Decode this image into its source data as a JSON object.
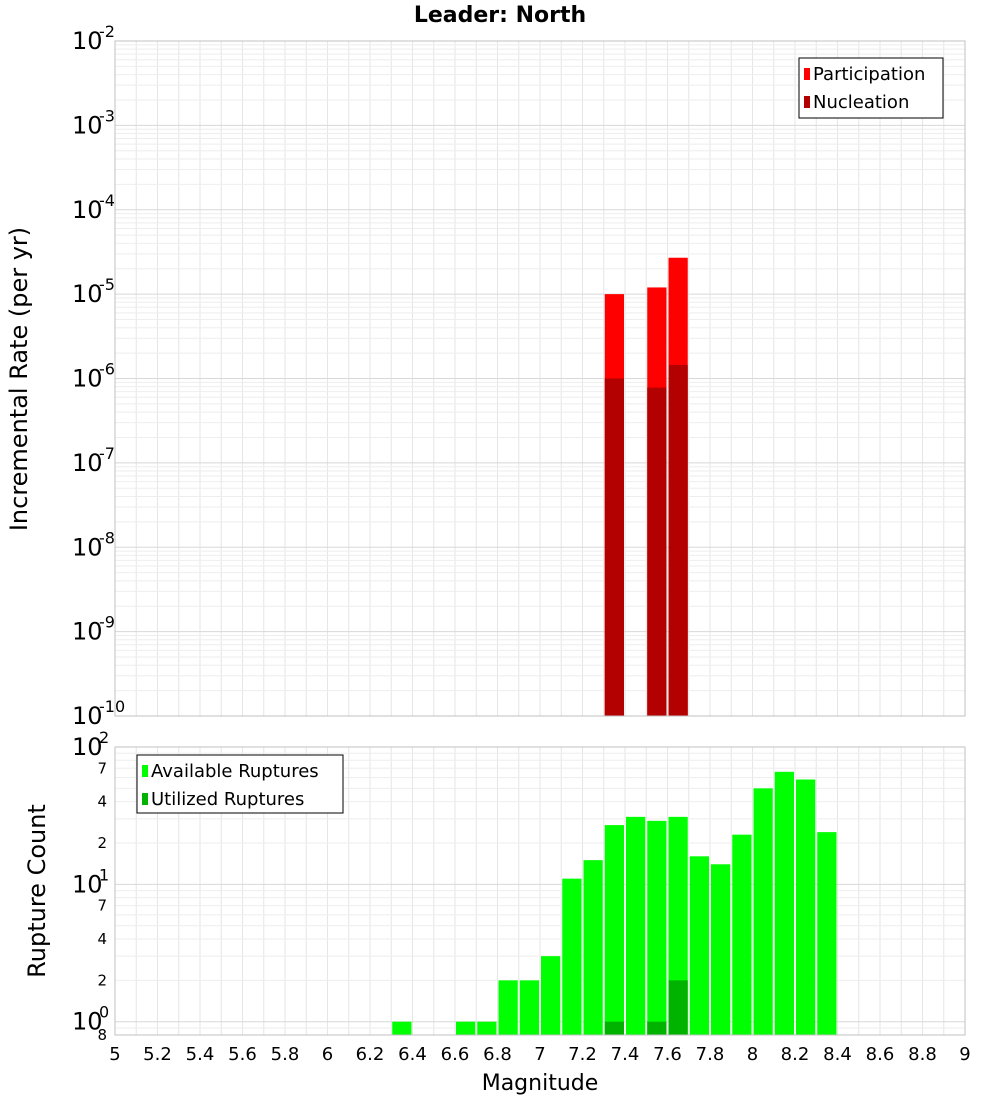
{
  "chart_data": [
    {
      "type": "bar",
      "title": "Leader: North",
      "xlabel": "",
      "ylabel": "Incremental Rate (per yr)",
      "yscale": "log",
      "xlim": [
        5,
        9
      ],
      "ylim": [
        1e-10,
        0.01
      ],
      "y_major_ticks": [
        {
          "base": "10",
          "exp": "-10",
          "value": 1e-10
        },
        {
          "base": "10",
          "exp": "-9",
          "value": 1e-09
        },
        {
          "base": "10",
          "exp": "-8",
          "value": 1e-08
        },
        {
          "base": "10",
          "exp": "-7",
          "value": 1e-07
        },
        {
          "base": "10",
          "exp": "-6",
          "value": 1e-06
        },
        {
          "base": "10",
          "exp": "-5",
          "value": 1e-05
        },
        {
          "base": "10",
          "exp": "-4",
          "value": 0.0001
        },
        {
          "base": "10",
          "exp": "-3",
          "value": 0.001
        },
        {
          "base": "10",
          "exp": "-2",
          "value": 0.01
        }
      ],
      "grid": true,
      "legend_position": "top-right",
      "series": [
        {
          "name": "Participation",
          "color": "#ff0000",
          "points": [
            {
              "x": 7.35,
              "y": 1e-05
            },
            {
              "x": 7.55,
              "y": 1.2e-05
            },
            {
              "x": 7.65,
              "y": 2.7e-05
            }
          ]
        },
        {
          "name": "Nucleation",
          "color": "#b30000",
          "points": [
            {
              "x": 7.35,
              "y": 1e-06
            },
            {
              "x": 7.55,
              "y": 7.8e-07
            },
            {
              "x": 7.65,
              "y": 1.45e-06
            }
          ]
        }
      ]
    },
    {
      "type": "bar",
      "title": "",
      "xlabel": "Magnitude",
      "ylabel": "Rupture Count",
      "yscale": "log",
      "xlim": [
        5,
        9
      ],
      "ylim": [
        0.8,
        100
      ],
      "x_ticks": [
        "5",
        "5.2",
        "5.4",
        "5.6",
        "5.8",
        "6",
        "6.2",
        "6.4",
        "6.6",
        "6.8",
        "7",
        "7.2",
        "7.4",
        "7.6",
        "7.8",
        "8",
        "8.2",
        "8.4",
        "8.6",
        "8.8",
        "9"
      ],
      "y_major_ticks": [
        {
          "base": "10",
          "exp": "0",
          "value": 1
        },
        {
          "base": "10",
          "exp": "1",
          "value": 10
        },
        {
          "base": "10",
          "exp": "2",
          "value": 100
        }
      ],
      "y_minor_ticks": [
        {
          "label": "8",
          "value": 0.8
        },
        {
          "label": "2",
          "value": 2
        },
        {
          "label": "4",
          "value": 4
        },
        {
          "label": "7",
          "value": 7
        },
        {
          "label": "2",
          "value": 20
        },
        {
          "label": "4",
          "value": 40
        },
        {
          "label": "7",
          "value": 70
        }
      ],
      "grid": true,
      "legend_position": "top-left",
      "series": [
        {
          "name": "Available Ruptures",
          "color": "#00ff00",
          "points": [
            {
              "x": 6.35,
              "y": 1
            },
            {
              "x": 6.65,
              "y": 1
            },
            {
              "x": 6.75,
              "y": 1
            },
            {
              "x": 6.85,
              "y": 2
            },
            {
              "x": 6.95,
              "y": 2
            },
            {
              "x": 7.05,
              "y": 3
            },
            {
              "x": 7.15,
              "y": 11
            },
            {
              "x": 7.25,
              "y": 15
            },
            {
              "x": 7.35,
              "y": 27
            },
            {
              "x": 7.45,
              "y": 31
            },
            {
              "x": 7.55,
              "y": 29
            },
            {
              "x": 7.65,
              "y": 31
            },
            {
              "x": 7.75,
              "y": 16
            },
            {
              "x": 7.85,
              "y": 14
            },
            {
              "x": 7.95,
              "y": 23
            },
            {
              "x": 8.05,
              "y": 50
            },
            {
              "x": 8.15,
              "y": 66
            },
            {
              "x": 8.25,
              "y": 58
            },
            {
              "x": 8.35,
              "y": 24
            }
          ]
        },
        {
          "name": "Utilized Ruptures",
          "color": "#00b300",
          "points": [
            {
              "x": 7.35,
              "y": 1
            },
            {
              "x": 7.55,
              "y": 1
            },
            {
              "x": 7.65,
              "y": 2
            }
          ]
        }
      ]
    }
  ]
}
